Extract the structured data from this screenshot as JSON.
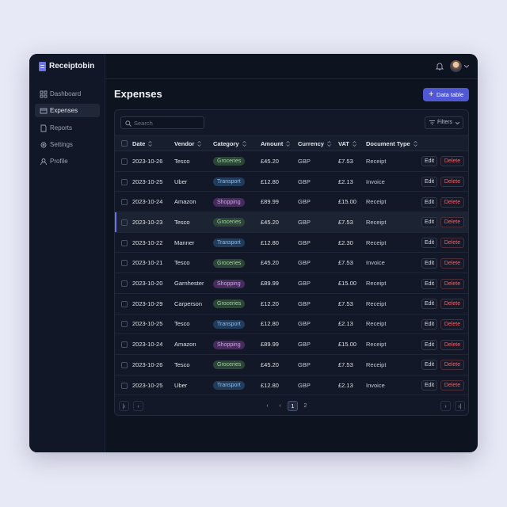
{
  "app": {
    "name": "Receiptobin",
    "nav": [
      "Dashboard",
      "Expenses",
      "Reports",
      "Settings",
      "Profile"
    ],
    "active_nav": 1
  },
  "header": {
    "title": "Expenses",
    "button": "Data table"
  },
  "toolbar": {
    "search_placeholder": "Search",
    "filters": "Filters"
  },
  "table": {
    "columns": [
      "Date",
      "Vendor",
      "Category",
      "Amount",
      "Currency",
      "VAT",
      "Document Type"
    ],
    "selected_row": 3,
    "chip_colors": {
      "Groceries": [
        "#2c4536",
        "#9fd1a6"
      ],
      "Transport": [
        "#213c5a",
        "#8fbbe8"
      ],
      "Shopping": [
        "#452c5a",
        "#cba2ea"
      ]
    },
    "rows": [
      [
        "2023-10-26",
        "Tesco",
        "Groceries",
        "£45.20",
        "GBP",
        "£7.53",
        "Receipt"
      ],
      [
        "2023-10-25",
        "Uber",
        "Transport",
        "£12.80",
        "GBP",
        "£2.13",
        "Invoice"
      ],
      [
        "2023-10-24",
        "Amazon",
        "Shopping",
        "£89.99",
        "GBP",
        "£15.00",
        "Receipt"
      ],
      [
        "2023-10-23",
        "Tesco",
        "Groceries",
        "£45.20",
        "GBP",
        "£7.53",
        "Receipt"
      ],
      [
        "2023-10-22",
        "Manner",
        "Transport",
        "£12.80",
        "GBP",
        "£2.30",
        "Receipt"
      ],
      [
        "2023-10-21",
        "Tesco",
        "Groceries",
        "£45.20",
        "GBP",
        "£7.53",
        "Invoice"
      ],
      [
        "2023-10-20",
        "Garnhester",
        "Shopping",
        "£89.99",
        "GBP",
        "£15.00",
        "Receipt"
      ],
      [
        "2023-10-29",
        "Carperson",
        "Groceries",
        "£12.20",
        "GBP",
        "£7.53",
        "Receipt"
      ],
      [
        "2023-10-25",
        "Tesco",
        "Transport",
        "£12.80",
        "GBP",
        "£2.13",
        "Receipt"
      ],
      [
        "2023-10-24",
        "Amazon",
        "Shopping",
        "£89.99",
        "GBP",
        "£15.00",
        "Receipt"
      ],
      [
        "2023-10-26",
        "Tesco",
        "Groceries",
        "£45.20",
        "GBP",
        "£7.53",
        "Receipt"
      ],
      [
        "2023-10-25",
        "Uber",
        "Transport",
        "£12.80",
        "GBP",
        "£2.13",
        "Invoice"
      ]
    ],
    "row_actions": [
      "Edit",
      "Delete"
    ]
  },
  "pagination": {
    "pages": [
      1,
      2
    ],
    "current": 1
  }
}
